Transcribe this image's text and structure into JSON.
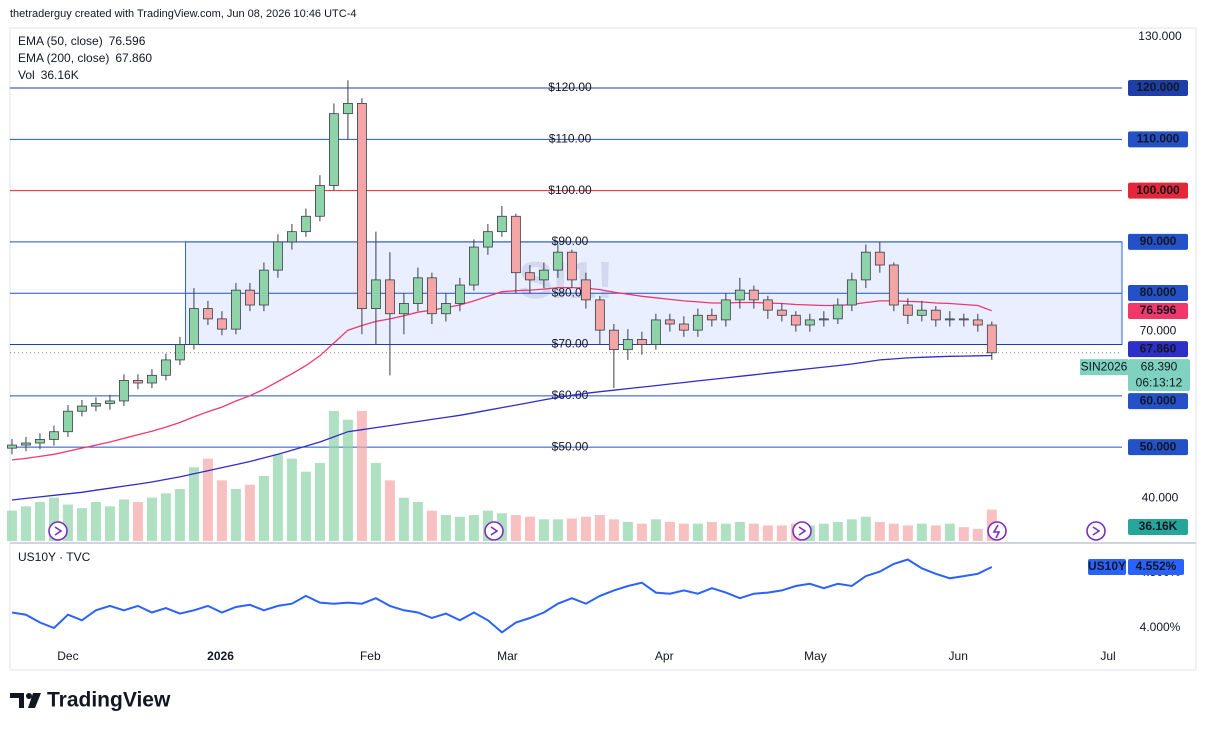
{
  "attribution": "thetraderguy created with TradingView.com, Jun 08, 2026 10:46 UTC-4",
  "brand": "TradingView",
  "chart_data": [
    {
      "type": "candlestick",
      "watermark": "SI1!",
      "symbol": "SIN2026",
      "countdown": "06:13:12",
      "open": [
        49.8,
        50.4,
        50.8,
        51.5,
        53,
        57,
        58,
        58.5,
        59,
        63,
        62.5,
        64,
        67,
        70,
        77,
        75,
        73,
        80.6,
        77.7,
        84.5,
        90,
        92,
        95,
        101,
        115,
        117,
        77,
        82.6,
        76,
        78,
        83,
        76,
        78,
        81.6,
        89,
        92,
        95,
        84,
        82.6,
        84.5,
        88,
        82.6,
        78.7,
        72.8,
        69,
        71,
        70,
        74.8,
        74,
        72.8,
        75.7,
        74.8,
        78.7,
        80.6,
        78.7,
        76.7,
        75.7,
        73.8,
        74.8,
        75,
        77.7,
        82.6,
        88,
        85.5,
        77.7,
        75.7,
        76.7,
        74.8,
        75,
        74.8,
        73.8
      ],
      "high": [
        51.6,
        52,
        52.7,
        54.2,
        58.2,
        59.2,
        59.7,
        60.2,
        64.2,
        64.2,
        65.2,
        68.2,
        71.5,
        81,
        78.5,
        76.5,
        82,
        82,
        86,
        91.5,
        93.5,
        96.5,
        103,
        117,
        121.5,
        118,
        92,
        88,
        80,
        85,
        84,
        80,
        83,
        90.5,
        93.5,
        97,
        95.5,
        85.5,
        86,
        89.5,
        88.5,
        84,
        79.5,
        74,
        73,
        72.5,
        76,
        76,
        75.5,
        77,
        77,
        80,
        83,
        81.5,
        79.5,
        78,
        76.5,
        76,
        76.5,
        79,
        84,
        89.5,
        90,
        86,
        79,
        78.5,
        77.5,
        76.5,
        76,
        76,
        74.5
      ],
      "low": [
        48.6,
        49.2,
        49.6,
        50.3,
        52,
        56,
        57,
        57.3,
        58,
        61.3,
        61.5,
        63,
        66,
        69,
        73.8,
        71.8,
        72,
        76.5,
        76.5,
        83,
        88.5,
        91,
        94,
        100,
        110,
        72,
        70,
        64,
        72,
        76.5,
        74,
        74.5,
        76.5,
        80.5,
        87.5,
        91,
        80,
        80,
        81,
        83,
        81,
        77,
        70,
        61.5,
        67,
        68,
        69,
        72.5,
        71.5,
        71.5,
        73.5,
        73.5,
        77,
        77,
        75,
        74.5,
        72.5,
        72.5,
        73.5,
        74,
        76.5,
        81,
        84,
        76.5,
        74,
        74.5,
        73.5,
        73.5,
        73.5,
        72.5,
        67
      ],
      "close": [
        50.4,
        50.8,
        51.5,
        53,
        57,
        58,
        58.5,
        59,
        63,
        62.5,
        64,
        67,
        70,
        77,
        75,
        73,
        80.6,
        77.7,
        84.5,
        90,
        92,
        95,
        101,
        115,
        117,
        77,
        82.6,
        76,
        78,
        83,
        76,
        78,
        81.6,
        89,
        92,
        95,
        84,
        82.6,
        84.5,
        88,
        82.6,
        78.7,
        72.8,
        69,
        71,
        70,
        74.8,
        74,
        72.8,
        75.7,
        74.8,
        78.7,
        80.6,
        78.7,
        76.7,
        75.7,
        73.8,
        74.8,
        75,
        77.7,
        82.6,
        88,
        85.5,
        77.7,
        75.7,
        76.7,
        74.8,
        75,
        74.8,
        73.8,
        68.39
      ],
      "close_last_label": "68.390",
      "up_color": "#8fd3a8",
      "down_color": "#f4a6a6",
      "border_color": "#3a3e4a",
      "close_badge_color": "#7fd1c0",
      "series": [
        {
          "name": "EMA (50, close)",
          "color": "#f0386b",
          "values": [
            47.5,
            47.8,
            48.2,
            48.6,
            49.2,
            49.8,
            50.4,
            51,
            51.7,
            52.4,
            53.1,
            53.9,
            54.8,
            55.9,
            56.9,
            57.8,
            59,
            60,
            61.3,
            62.8,
            64.3,
            65.9,
            67.8,
            70.3,
            72.8,
            73.7,
            74.5,
            75,
            75.6,
            76.3,
            76.7,
            77.2,
            77.7,
            78.5,
            79.4,
            80.3,
            80.5,
            80.6,
            80.8,
            81.1,
            81.1,
            81,
            80.7,
            80.2,
            79.8,
            79.4,
            79.1,
            78.8,
            78.5,
            78.3,
            78.1,
            78.1,
            78.2,
            78.2,
            78.1,
            78,
            77.8,
            77.7,
            77.6,
            77.6,
            77.8,
            78.2,
            78.5,
            78.5,
            78.4,
            78.3,
            78.1,
            78,
            77.8,
            77.6,
            76.596
          ]
        },
        {
          "name": "EMA (200, close)",
          "color": "#2e2ec9",
          "last_label": "67.860",
          "values": [
            39.7,
            40,
            40.3,
            40.6,
            40.9,
            41.2,
            41.6,
            42,
            42.4,
            42.8,
            43.2,
            43.7,
            44.2,
            44.8,
            45.4,
            46,
            46.6,
            47.2,
            47.9,
            48.6,
            49.4,
            50.2,
            51,
            52,
            53,
            53.4,
            53.8,
            54.2,
            54.6,
            55,
            55.4,
            55.8,
            56.2,
            56.7,
            57.2,
            57.7,
            58.2,
            58.7,
            59.2,
            59.7,
            60.1,
            60.5,
            60.8,
            61.1,
            61.4,
            61.7,
            62,
            62.3,
            62.6,
            62.9,
            63.2,
            63.5,
            63.8,
            64.1,
            64.4,
            64.7,
            65,
            65.3,
            65.6,
            65.9,
            66.2,
            66.6,
            67,
            67.2,
            67.4,
            67.5,
            67.6,
            67.7,
            67.75,
            67.8,
            67.86
          ]
        }
      ],
      "volume": {
        "name": "Vol",
        "color": "#26a69a",
        "last_label": "36.16K",
        "values": [
          35000,
          40000,
          45000,
          50000,
          42000,
          38000,
          45000,
          40000,
          48000,
          45000,
          50000,
          55000,
          60000,
          85000,
          95000,
          70000,
          60000,
          65000,
          75000,
          100000,
          95000,
          80000,
          90000,
          150000,
          140000,
          150000,
          90000,
          70000,
          50000,
          45000,
          35000,
          30000,
          28000,
          30000,
          35000,
          32000,
          30000,
          28000,
          25000,
          25000,
          26000,
          28000,
          30000,
          25000,
          22000,
          20000,
          25000,
          22000,
          20000,
          20000,
          22000,
          20000,
          22000,
          20000,
          18000,
          18000,
          20000,
          18000,
          20000,
          22000,
          25000,
          28000,
          22000,
          20000,
          18000,
          20000,
          18000,
          20000,
          16000,
          14000,
          36160
        ]
      },
      "hlines": [
        {
          "value": 120,
          "label": "$120.00",
          "axis_label": "120.000",
          "color": "#1f3fa8"
        },
        {
          "value": 110,
          "label": "$110.00",
          "axis_label": "110.000",
          "color": "#2450c8"
        },
        {
          "value": 100,
          "label": "$100.00",
          "axis_label": "100.000",
          "color": "#e5273a"
        },
        {
          "value": 90,
          "label": "$90.00",
          "axis_label": "90.000",
          "color": "#2450c8"
        },
        {
          "value": 80,
          "label": "$80.00",
          "axis_label": "80.000",
          "color": "#2450c8"
        },
        {
          "value": 70,
          "label": "$70.00",
          "axis_label": "70.000",
          "color": "#1f3fa8",
          "boxed": false
        },
        {
          "value": 60,
          "label": "$60.00",
          "axis_label": "60.000",
          "color": "#2450c8"
        },
        {
          "value": 50,
          "label": "$50.00",
          "axis_label": "50.000",
          "color": "#2450c8"
        }
      ],
      "rectangle": {
        "x": [
          12.4,
          79.3
        ],
        "y": [
          70,
          90
        ],
        "color": "#2962ff"
      },
      "xlim": [
        -0.14,
        79.3
      ],
      "ylim": [
        31.7,
        131.7
      ],
      "yticks": [
        {
          "value": 40,
          "label": "40.000"
        },
        {
          "value": 130,
          "label": "130.000"
        }
      ]
    },
    {
      "type": "line",
      "title": "US10Y · TVC",
      "series": [
        {
          "name": "US10Y",
          "color": "#2962ff",
          "last_label": "4.552%",
          "values": [
            4.14,
            4.12,
            4.05,
            4,
            4.12,
            4.07,
            4.16,
            4.2,
            4.16,
            4.2,
            4.14,
            4.18,
            4.13,
            4.16,
            4.2,
            4.14,
            4.19,
            4.21,
            4.16,
            4.2,
            4.22,
            4.29,
            4.23,
            4.22,
            4.23,
            4.22,
            4.27,
            4.2,
            4.16,
            4.14,
            4.09,
            4.13,
            4.07,
            4.14,
            4.07,
            3.96,
            4.05,
            4.09,
            4.14,
            4.22,
            4.27,
            4.22,
            4.29,
            4.34,
            4.38,
            4.41,
            4.32,
            4.31,
            4.34,
            4.31,
            4.36,
            4.32,
            4.27,
            4.31,
            4.32,
            4.34,
            4.38,
            4.4,
            4.36,
            4.4,
            4.38,
            4.47,
            4.51,
            4.58,
            4.62,
            4.54,
            4.49,
            4.45,
            4.47,
            4.49,
            4.552
          ]
        }
      ],
      "xlim": [
        -0.14,
        79.3
      ],
      "xticks": [
        {
          "value": 4,
          "label": "Dec"
        },
        {
          "value": 14.9,
          "label": "2026"
        },
        {
          "value": 25.6,
          "label": "Feb"
        },
        {
          "value": 35.4,
          "label": "Mar"
        },
        {
          "value": 46.6,
          "label": "Apr"
        },
        {
          "value": 57.4,
          "label": "May"
        },
        {
          "value": 67.6,
          "label": "Jun"
        },
        {
          "value": 78.3,
          "label": "Jul"
        }
      ],
      "ylim": [
        3.638,
        4.751
      ],
      "yticks": [
        {
          "value": 4,
          "label": "4.000%"
        },
        {
          "value": 4.5,
          "label": "4.500%"
        }
      ]
    }
  ]
}
